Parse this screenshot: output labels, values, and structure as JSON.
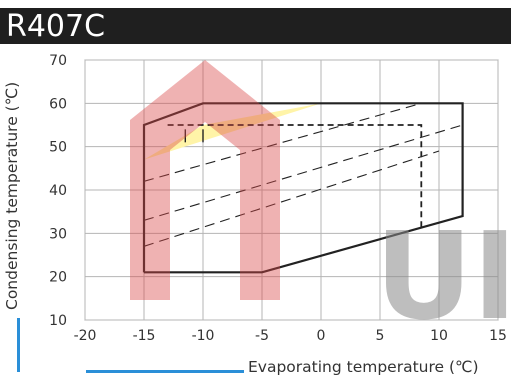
{
  "chart_data": {
    "type": "line",
    "title": "R407C",
    "xlabel": "Evaporating temperature (℃)",
    "ylabel": "Condensing temperature (℃)",
    "xlim": [
      -20,
      15
    ],
    "ylim": [
      10,
      70
    ],
    "xticks": [
      -20,
      -15,
      -10,
      -5,
      0,
      5,
      10,
      15
    ],
    "yticks": [
      10,
      20,
      30,
      40,
      50,
      60,
      70
    ],
    "grid": true,
    "series": [
      {
        "style": "solid-boundary",
        "x": [
          -15,
          -15,
          -10,
          0,
          12,
          12,
          -5,
          -15
        ],
        "y": [
          21,
          55,
          60,
          60,
          60,
          34,
          21,
          21
        ]
      },
      {
        "style": "dashed-boundary",
        "x": [
          -13,
          8.5,
          8.5
        ],
        "y": [
          55,
          55,
          31
        ]
      },
      {
        "style": "dashed-line",
        "x": [
          -15,
          12
        ],
        "y": [
          33,
          55
        ]
      },
      {
        "style": "dashed-line",
        "x": [
          -15,
          10
        ],
        "y": [
          27,
          49
        ]
      },
      {
        "style": "dashed-line",
        "x": [
          -15,
          8.5
        ],
        "y": [
          42,
          60
        ]
      },
      {
        "style": "inner-line",
        "x": [
          -11.5,
          -11.5
        ],
        "y": [
          51,
          54
        ]
      },
      {
        "style": "inner-line",
        "x": [
          -10,
          -10
        ],
        "y": [
          51,
          54
        ]
      }
    ],
    "shaded_region": {
      "color": "#fff4a8",
      "x": [
        -15,
        -10,
        0,
        -15
      ],
      "y": [
        47,
        55,
        60,
        47
      ]
    },
    "watermark": "UI"
  }
}
